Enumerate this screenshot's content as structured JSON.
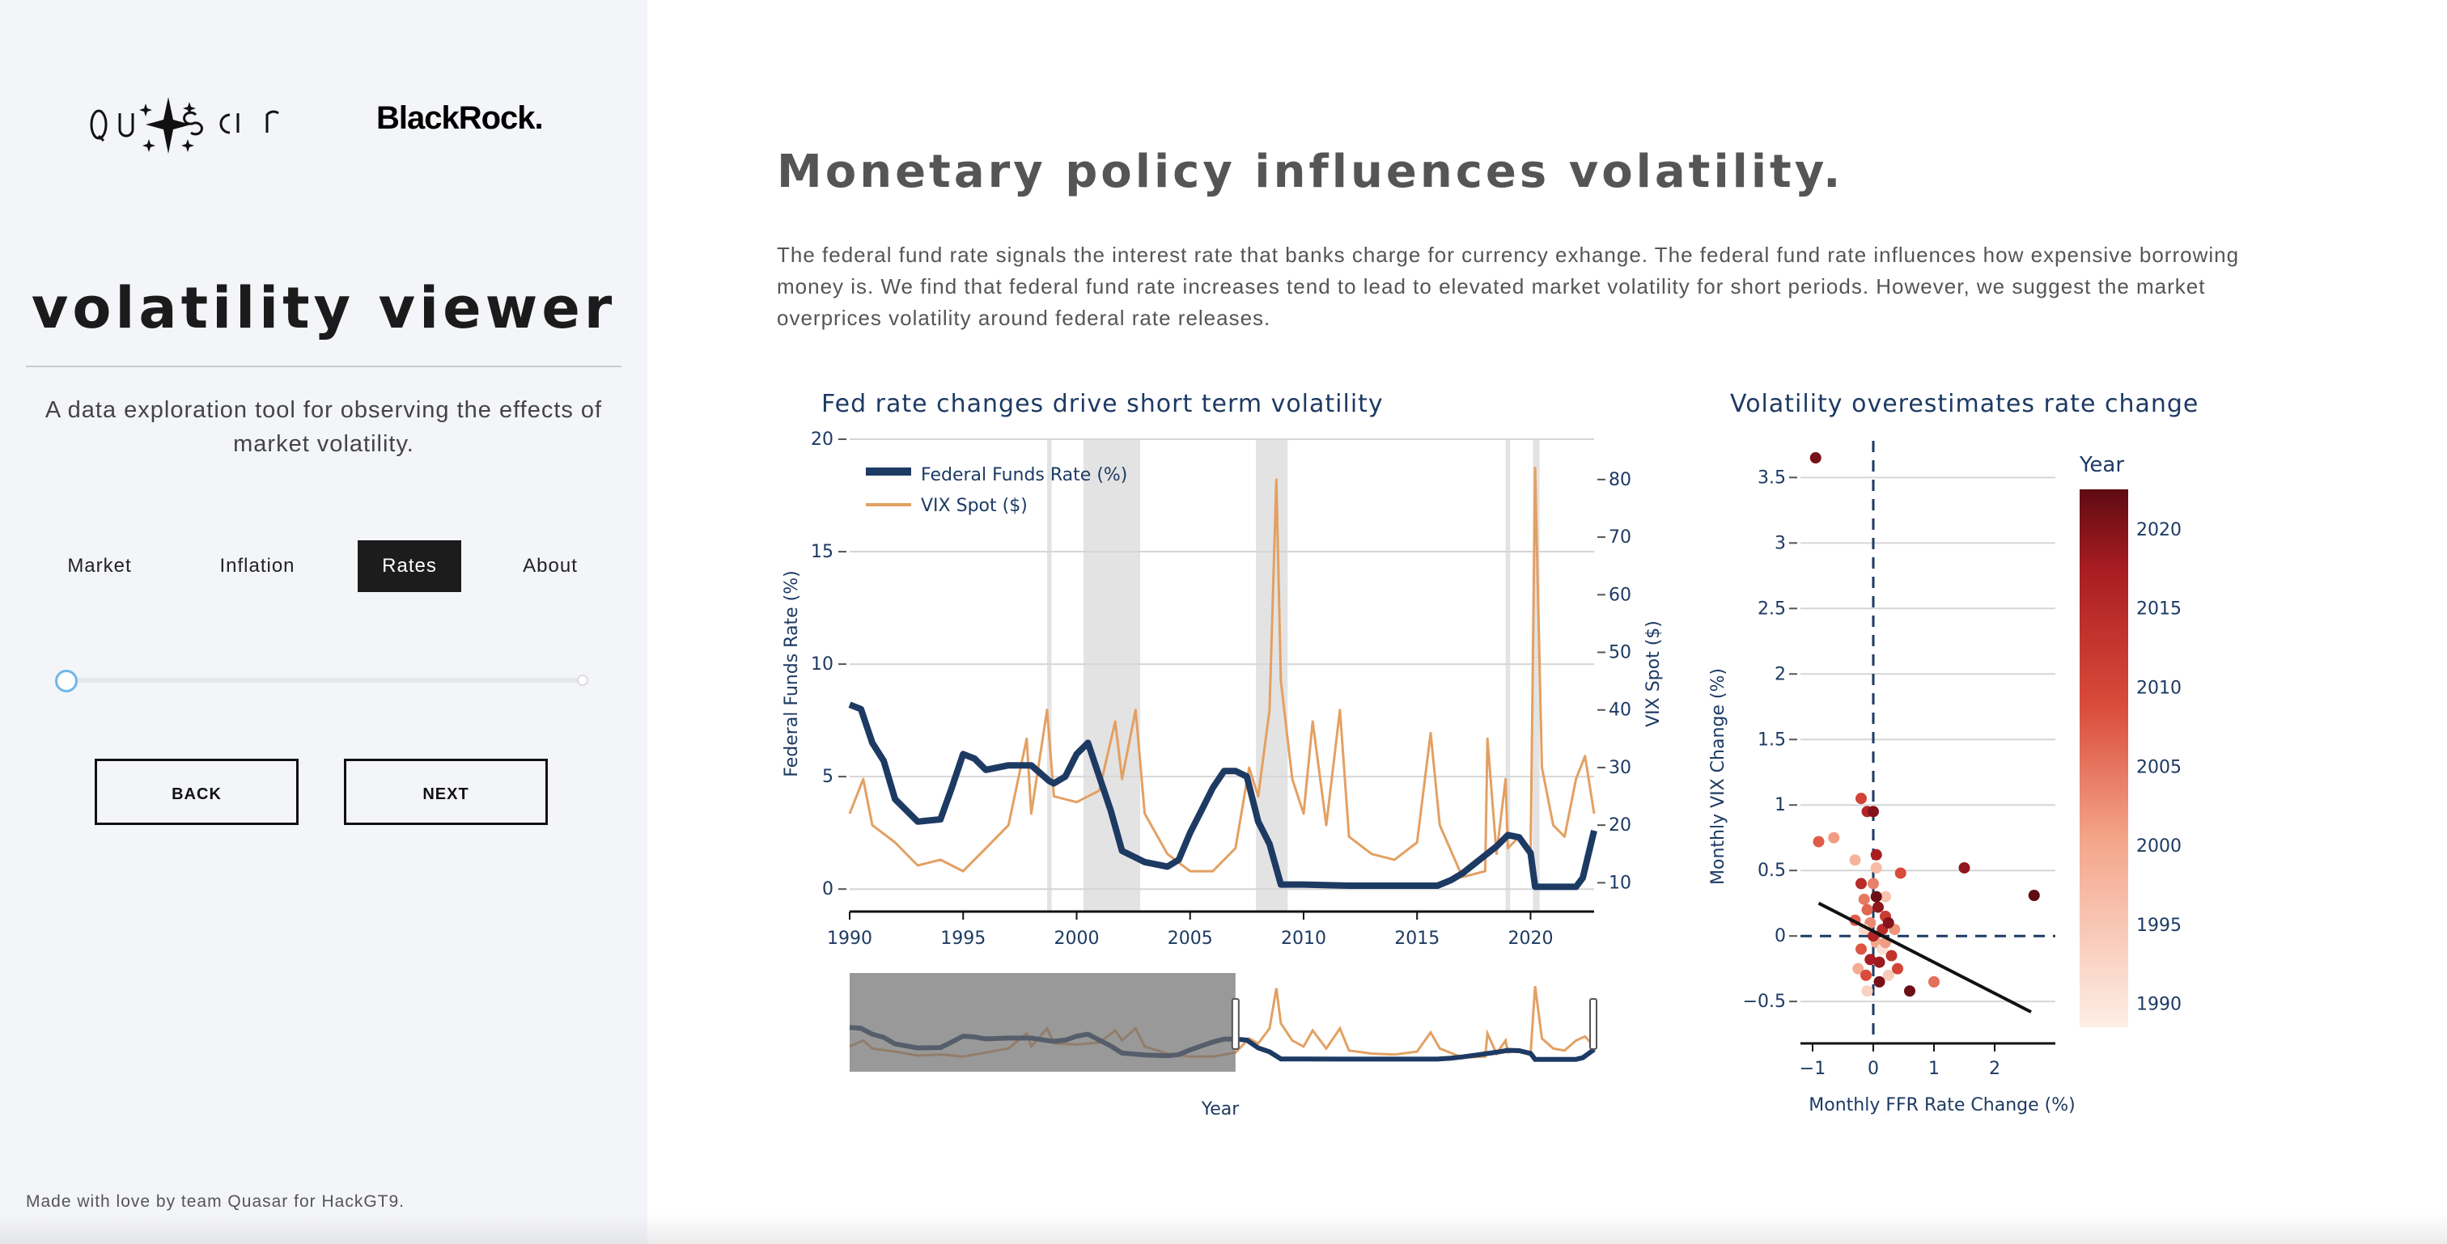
{
  "sidebar": {
    "logo_text": "QUASAR",
    "partner_logo": "BlackRock.",
    "title": "volatility viewer",
    "subtitle": "A data exploration tool for observing the effects of market volatility.",
    "nav": [
      {
        "label": "Market",
        "active": false
      },
      {
        "label": "Inflation",
        "active": false
      },
      {
        "label": "Rates",
        "active": true
      },
      {
        "label": "About",
        "active": false
      }
    ],
    "slider": {
      "value": 0
    },
    "back_label": "BACK",
    "next_label": "NEXT",
    "footer": "Made with love by team Quasar for HackGT9."
  },
  "main": {
    "title": "Monetary policy influences volatility.",
    "description": "The federal fund rate signals the interest rate that banks charge for currency exhange. The federal fund rate influences how expensive borrowing money is. We find that federal fund rate increases tend to lead to elevated market volatility for short periods. However, we suggest the market overprices volatility around federal rate releases."
  },
  "colors": {
    "ffr": "#1d3a63",
    "vix": "#e3a062",
    "recession": "#e3e3e3",
    "accent": "#1c1c1c"
  },
  "chart_data": [
    {
      "type": "line",
      "title": "Fed rate changes drive short term volatility",
      "xlabel": "Year",
      "ylabel": "Federal Funds Rate (%)",
      "y2label": "VIX Spot ($)",
      "xlim": [
        1990,
        2022.8
      ],
      "ylim": [
        -1,
        20
      ],
      "y2lim": [
        5,
        87
      ],
      "x_ticks": [
        "1990",
        "1995",
        "2000",
        "2005",
        "2010",
        "2015",
        "2020"
      ],
      "y_ticks": [
        "0",
        "5",
        "10",
        "15",
        "20"
      ],
      "y2_ticks": [
        "10",
        "20",
        "30",
        "40",
        "50",
        "60",
        "70",
        "80"
      ],
      "legend_position": "top-left",
      "recessions": [
        [
          1998.7,
          1998.9
        ],
        [
          2000.3,
          2002.8
        ],
        [
          2007.9,
          2009.3
        ],
        [
          2018.9,
          2019.1
        ],
        [
          2020.1,
          2020.4
        ]
      ],
      "series": [
        {
          "name": "Federal Funds Rate (%)",
          "axis": "y",
          "x": [
            1990,
            1990.5,
            1991,
            1991.5,
            1992,
            1993,
            1994,
            1994.5,
            1995,
            1995.5,
            1996,
            1997,
            1998,
            1998.8,
            1999,
            1999.5,
            2000,
            2000.5,
            2001,
            2001.5,
            2002,
            2003,
            2004,
            2004.5,
            2005,
            2005.5,
            2006,
            2006.5,
            2007,
            2007.5,
            2008,
            2008.5,
            2009,
            2010,
            2012,
            2015.9,
            2016.5,
            2017,
            2017.5,
            2018,
            2018.5,
            2019,
            2019.5,
            2020,
            2020.2,
            2021,
            2022,
            2022.3,
            2022.8
          ],
          "values": [
            8.2,
            8.0,
            6.5,
            5.7,
            4.0,
            3.0,
            3.1,
            4.5,
            6.0,
            5.8,
            5.3,
            5.5,
            5.5,
            4.8,
            4.7,
            5.0,
            6.0,
            6.5,
            5.0,
            3.5,
            1.7,
            1.2,
            1.0,
            1.3,
            2.5,
            3.5,
            4.5,
            5.25,
            5.25,
            5.0,
            3.0,
            2.0,
            0.2,
            0.2,
            0.15,
            0.15,
            0.4,
            0.7,
            1.1,
            1.5,
            1.9,
            2.4,
            2.3,
            1.6,
            0.1,
            0.1,
            0.1,
            0.5,
            2.6
          ]
        },
        {
          "name": "VIX Spot ($)",
          "axis": "y2",
          "x": [
            1990,
            1990.6,
            1991,
            1992,
            1993,
            1994,
            1995,
            1996,
            1997,
            1997.8,
            1998,
            1998.7,
            1999,
            2000,
            2001,
            2001.7,
            2002,
            2002.6,
            2003,
            2004,
            2005,
            2006,
            2007,
            2007.6,
            2008,
            2008.5,
            2008.8,
            2009,
            2009.5,
            2010,
            2010.4,
            2011,
            2011.6,
            2012,
            2013,
            2014,
            2015,
            2015.6,
            2016,
            2017,
            2018,
            2018.1,
            2018.5,
            2018.9,
            2019,
            2019.5,
            2020,
            2020.2,
            2020.5,
            2021,
            2021.5,
            2022,
            2022.4,
            2022.8
          ],
          "values": [
            22,
            28,
            20,
            17,
            13,
            14,
            12,
            16,
            20,
            35,
            22,
            40,
            25,
            24,
            26,
            38,
            28,
            40,
            22,
            15,
            12,
            12,
            16,
            30,
            25,
            40,
            80,
            45,
            28,
            22,
            38,
            20,
            40,
            18,
            15,
            14,
            17,
            36,
            20,
            11,
            12,
            35,
            15,
            28,
            16,
            18,
            15,
            82,
            30,
            20,
            18,
            28,
            32,
            22
          ]
        }
      ]
    },
    {
      "type": "scatter",
      "title": "Volatility overestimates rate change",
      "xlabel": "Monthly FFR Rate Change (%)",
      "ylabel": "Monthly VIX Change (%)",
      "xlim": [
        -1.2,
        3.0
      ],
      "ylim": [
        -0.82,
        3.78
      ],
      "x_ticks": [
        "−1",
        "0",
        "1",
        "2"
      ],
      "y_ticks": [
        "−0.5",
        "0",
        "0.5",
        "1",
        "1.5",
        "2",
        "2.5",
        "3",
        "3.5"
      ],
      "colorbar_title": "Year",
      "colorbar_ticks": [
        "1990",
        "1995",
        "2000",
        "2005",
        "2010",
        "2015",
        "2020"
      ],
      "trendline": {
        "x": [
          -0.9,
          2.6
        ],
        "y": [
          0.25,
          -0.58
        ]
      },
      "points": [
        {
          "x": -0.95,
          "y": 3.65,
          "year": 2020
        },
        {
          "x": -0.9,
          "y": 0.72,
          "year": 2008
        },
        {
          "x": -0.65,
          "y": 0.75,
          "year": 2001
        },
        {
          "x": -0.3,
          "y": 0.58,
          "year": 1998
        },
        {
          "x": -0.2,
          "y": 1.05,
          "year": 2011
        },
        {
          "x": -0.1,
          "y": 0.95,
          "year": 2015
        },
        {
          "x": 0.0,
          "y": 0.95,
          "year": 2019
        },
        {
          "x": 0.05,
          "y": 0.62,
          "year": 2016
        },
        {
          "x": 0.45,
          "y": 0.48,
          "year": 2010
        },
        {
          "x": 1.5,
          "y": 0.52,
          "year": 2018
        },
        {
          "x": 2.65,
          "y": 0.31,
          "year": 2022
        },
        {
          "x": 0.6,
          "y": -0.42,
          "year": 2021
        },
        {
          "x": 1.0,
          "y": -0.35,
          "year": 2006
        },
        {
          "x": 0.25,
          "y": -0.3,
          "year": 1995
        },
        {
          "x": -0.1,
          "y": -0.42,
          "year": 1994
        },
        {
          "x": 0.2,
          "y": 0.15,
          "year": 2012
        },
        {
          "x": -0.15,
          "y": 0.28,
          "year": 2005
        },
        {
          "x": 0.1,
          "y": -0.2,
          "year": 2017
        },
        {
          "x": -0.05,
          "y": 0.1,
          "year": 2003
        },
        {
          "x": 0.15,
          "y": 0.05,
          "year": 2014
        },
        {
          "x": -0.2,
          "y": -0.1,
          "year": 2009
        },
        {
          "x": 0.3,
          "y": -0.15,
          "year": 2013
        },
        {
          "x": 0.05,
          "y": -0.05,
          "year": 2000
        },
        {
          "x": -0.1,
          "y": 0.2,
          "year": 2007
        },
        {
          "x": 0.0,
          "y": 0.4,
          "year": 2004
        },
        {
          "x": 0.35,
          "y": 0.05,
          "year": 2002
        },
        {
          "x": -0.25,
          "y": -0.25,
          "year": 1999
        },
        {
          "x": 0.1,
          "y": -0.35,
          "year": 2020
        },
        {
          "x": 0.2,
          "y": 0.3,
          "year": 1996
        },
        {
          "x": -0.15,
          "y": 0.05,
          "year": 1993
        },
        {
          "x": 0.05,
          "y": 0.52,
          "year": 1997
        },
        {
          "x": 0.4,
          "y": -0.25,
          "year": 2011
        },
        {
          "x": -0.05,
          "y": -0.18,
          "year": 2016
        },
        {
          "x": 0.15,
          "y": -0.1,
          "year": 1992
        },
        {
          "x": 0.25,
          "y": 0.1,
          "year": 2019
        },
        {
          "x": -0.3,
          "y": 0.12,
          "year": 2008
        },
        {
          "x": 0.0,
          "y": 0.0,
          "year": 2015
        },
        {
          "x": 0.08,
          "y": 0.22,
          "year": 2018
        },
        {
          "x": -0.12,
          "y": -0.3,
          "year": 2010
        },
        {
          "x": 0.2,
          "y": -0.05,
          "year": 2001
        },
        {
          "x": 0.05,
          "y": 0.3,
          "year": 2021
        },
        {
          "x": -0.2,
          "y": 0.4,
          "year": 2014
        }
      ]
    }
  ]
}
